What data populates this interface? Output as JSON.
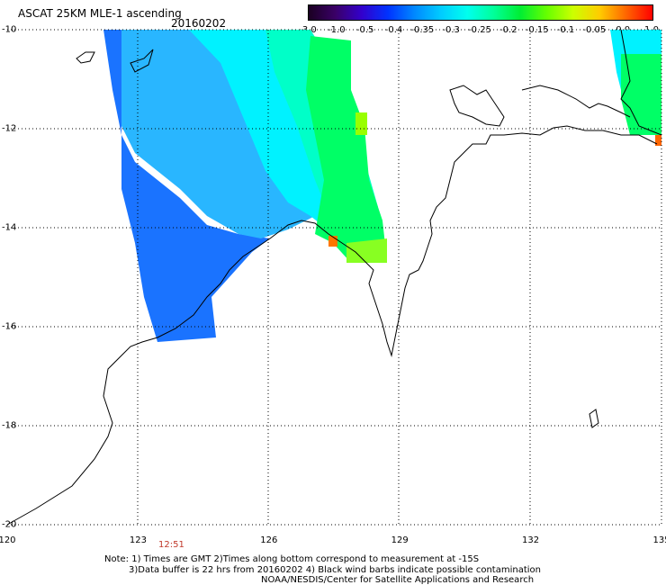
{
  "header": {
    "title": "ASCAT 25KM MLE-1 ascending",
    "date": "20160202"
  },
  "colorbar": {
    "ticks": [
      "-3.0",
      "-1.0",
      "-0.5",
      "-0.4",
      "-0.35",
      "-0.3",
      "-0.25",
      "-0.2",
      "-0.15",
      "-0.1",
      "-0.05",
      "0.0",
      "1.0"
    ],
    "stops": [
      "#1a0022",
      "#3a0066",
      "#3300cc",
      "#0033ff",
      "#0088ff",
      "#00ccff",
      "#00ffee",
      "#00ff99",
      "#00ee33",
      "#66ff00",
      "#ccff00",
      "#ffcc00",
      "#ff6600",
      "#ff0000"
    ]
  },
  "axes": {
    "lat_labels": [
      "-10",
      "-12",
      "-14",
      "-16",
      "-18",
      "-20"
    ],
    "lon_labels": [
      "120",
      "123",
      "126",
      "129",
      "132",
      "135"
    ]
  },
  "time_label": "12:51",
  "notes": {
    "line1": "Note: 1) Times are GMT 2)Times along bottom correspond to measurement at -15S",
    "line2": "3)Data buffer is 22 hrs from 20160202 4) Black wind barbs indicate possible contamination",
    "line3": "NOAA/NESDIS/Center for Satellite Applications and Research"
  },
  "colors": {
    "deep_blue": "#0066ff",
    "mid_blue": "#0099ff",
    "cyan": "#00ffff",
    "teal": "#00ffcc",
    "green": "#00ff55",
    "lime": "#66ff00",
    "orange": "#ff6600"
  }
}
